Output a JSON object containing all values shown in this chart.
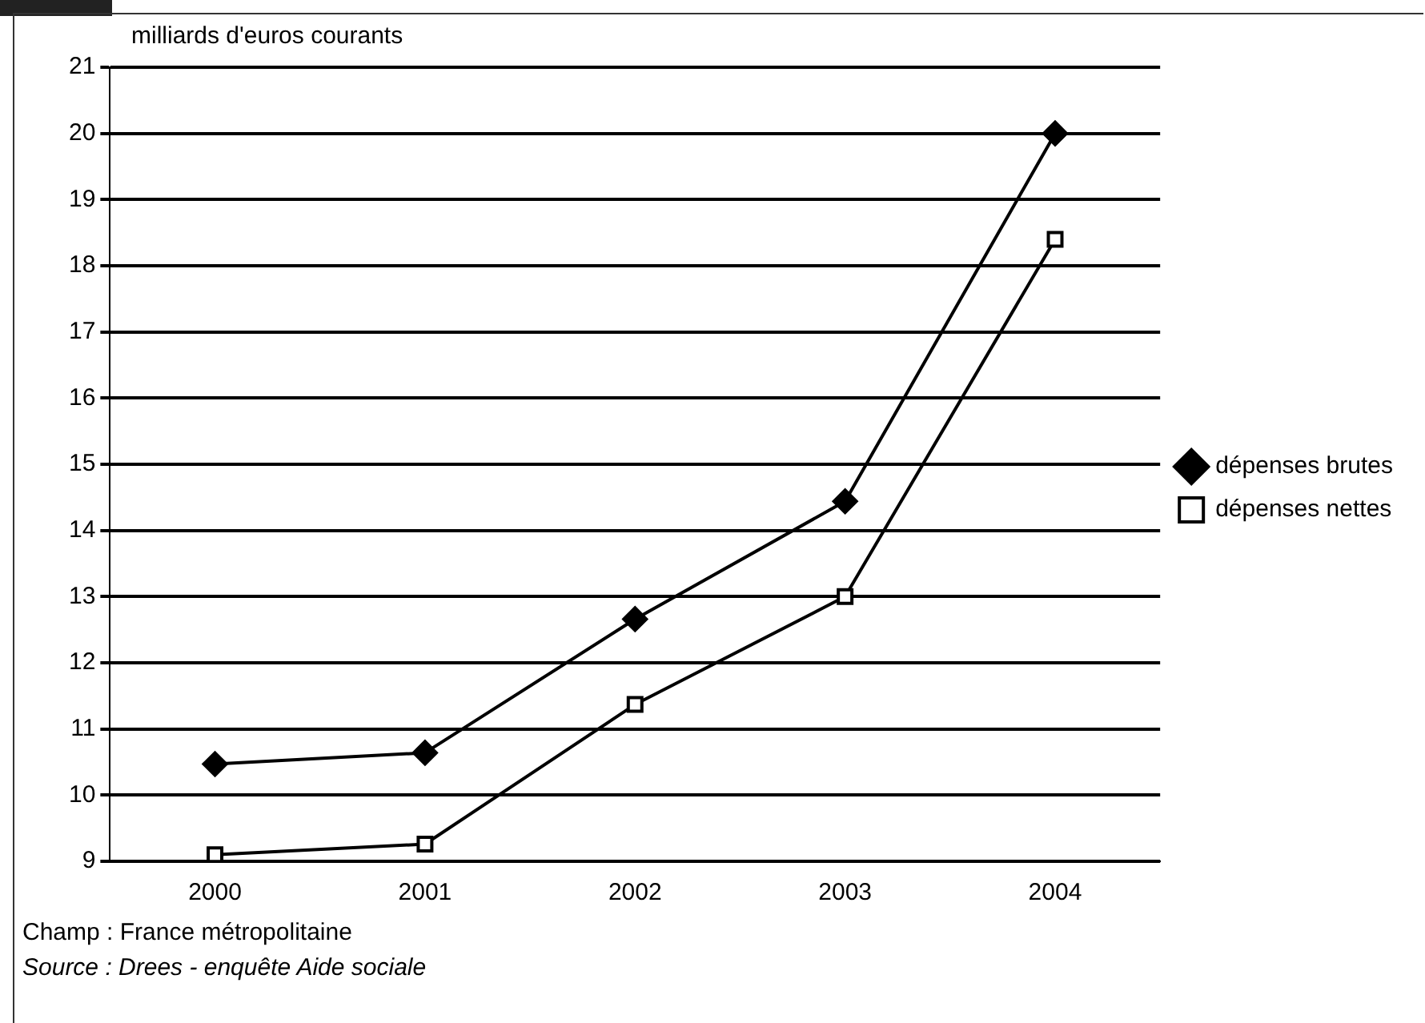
{
  "chart_data": {
    "type": "line",
    "ylabel": "milliards d'euros courants",
    "categories": [
      "2000",
      "2001",
      "2002",
      "2003",
      "2004"
    ],
    "series": [
      {
        "name": "dépenses brutes",
        "color": "#000000",
        "marker": "diamond",
        "values": [
          10.47,
          10.64,
          12.66,
          14.44,
          20.0
        ]
      },
      {
        "name": "dépenses nettes",
        "color": "#000000",
        "marker": "square",
        "values": [
          9.1,
          9.26,
          11.37,
          13.0,
          18.4
        ]
      }
    ],
    "ylim": [
      9,
      21
    ],
    "yticks": [
      9,
      10,
      11,
      12,
      13,
      14,
      15,
      16,
      17,
      18,
      19,
      20,
      21
    ],
    "grid": "y",
    "legend": "right",
    "line_style": "solid",
    "annotations": [
      "Champ : France métropolitaine",
      "Source : Drees - enquête Aide sociale"
    ]
  }
}
